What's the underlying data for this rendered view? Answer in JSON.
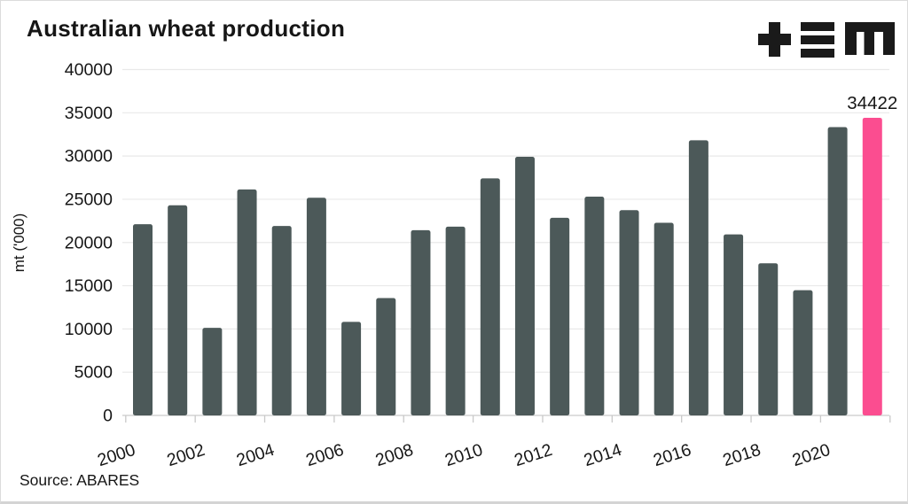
{
  "header": {
    "title": "Australian wheat production",
    "logo": "tem-logo"
  },
  "footer": {
    "source": "Source: ABARES"
  },
  "chart_data": {
    "type": "bar",
    "title": "Australian wheat production",
    "xlabel": "",
    "ylabel": "mt ('000)",
    "source": "Source: ABARES",
    "categories": [
      "2000",
      "2001",
      "2002",
      "2003",
      "2004",
      "2005",
      "2006",
      "2007",
      "2008",
      "2009",
      "2010",
      "2011",
      "2012",
      "2013",
      "2014",
      "2015",
      "2016",
      "2017",
      "2018",
      "2019",
      "2020",
      "2021"
    ],
    "values": [
      22108,
      24299,
      10132,
      26132,
      21905,
      25173,
      10822,
      13569,
      21420,
      21834,
      27410,
      29905,
      22855,
      25303,
      23743,
      22275,
      31819,
      20941,
      17598,
      14480,
      33344,
      34422
    ],
    "ylim": [
      0,
      40000
    ],
    "yticks": [
      0,
      5000,
      10000,
      15000,
      20000,
      25000,
      30000,
      35000,
      40000
    ],
    "xticks": [
      "2000",
      "2002",
      "2004",
      "2006",
      "2008",
      "2010",
      "2012",
      "2014",
      "2016",
      "2018",
      "2020"
    ],
    "grid": "horizontal",
    "legend": "none",
    "bar_color": "#4c5959",
    "highlight_color": "#fb4d90",
    "highlight_index": 21,
    "annotation": {
      "text": "34422",
      "bar_index": 21
    },
    "grid_color": "#e9e9e9",
    "axis_color": "#c9c9c9",
    "text_color": "#161616"
  }
}
